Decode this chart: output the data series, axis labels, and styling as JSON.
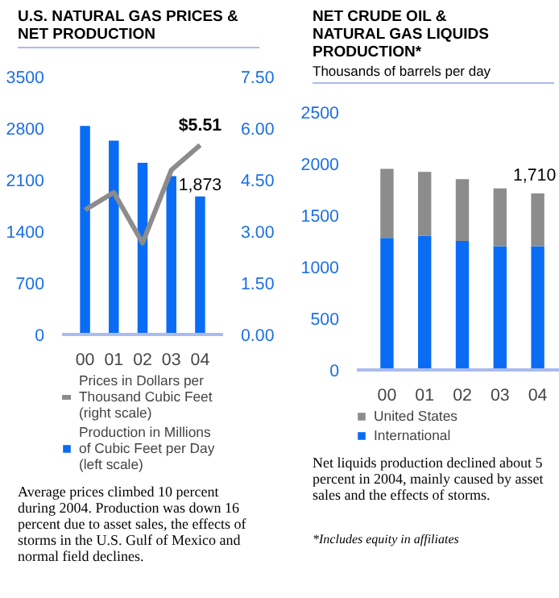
{
  "chart_data": [
    {
      "type": "bar",
      "title": "U.S. NATURAL GAS PRICES & NET PRODUCTION",
      "categories": [
        "00",
        "01",
        "02",
        "03",
        "04"
      ],
      "ylim": [
        0,
        3500
      ],
      "yticks": [
        0,
        700,
        1400,
        2100,
        2800,
        3500
      ],
      "y2lim": [
        0,
        7.5
      ],
      "y2ticks": [
        {
          "value": 0,
          "label": "0.00"
        },
        {
          "value": 1.5,
          "label": "1.50"
        },
        {
          "value": 3,
          "label": "3.00"
        },
        {
          "value": 4.5,
          "label": "4.50"
        },
        {
          "value": 6,
          "label": "6.00"
        },
        {
          "value": 7.5,
          "label": "7.50"
        }
      ],
      "legend": "bottom",
      "grid": false,
      "series": [
        {
          "name": "Prices in Dollars per Thousand Cubic Feet (right scale)",
          "type": "line",
          "axis": "y2",
          "color": "#8c8c8c",
          "values": [
            3.62,
            4.13,
            2.66,
            4.78,
            5.51
          ],
          "value_labels": [
            null,
            null,
            null,
            null,
            "$5.51"
          ]
        },
        {
          "name": "Production in Millions of Cubic Feet per Day (left scale)",
          "type": "bar",
          "color": "#0a6cf5",
          "values": [
            2830,
            2630,
            2330,
            2150,
            1873
          ],
          "value_labels": [
            null,
            null,
            null,
            null,
            "1,873"
          ]
        }
      ],
      "annotations": [
        "Average prices climbed 10 percent during 2004. Production was down 16 percent due to asset sales, the effects of storms in the U.S. Gulf of Mexico and normal field declines."
      ]
    },
    {
      "type": "bar",
      "title": "NET CRUDE OIL & NATURAL GAS LIQUIDS PRODUCTION*",
      "subtitle": "Thousands of barrels per day",
      "categories": [
        "00",
        "01",
        "02",
        "03",
        "04"
      ],
      "ylim": [
        0,
        2500
      ],
      "yticks": [
        0,
        500,
        1000,
        1500,
        2000,
        2500
      ],
      "stacked": true,
      "legend": "bottom",
      "grid": false,
      "totals": [
        null,
        null,
        null,
        null,
        "1,710"
      ],
      "series": [
        {
          "name": "International",
          "color": "#0a6cf5",
          "values": [
            1280,
            1300,
            1250,
            1200,
            1200
          ]
        },
        {
          "name": "United States",
          "color": "#8c8c8c",
          "values": [
            670,
            620,
            600,
            560,
            510
          ]
        }
      ],
      "annotations": [
        "Net liquids production declined about 5 percent in 2004, mainly caused by asset sales and the effects of storms.",
        "*Includes equity in affiliates"
      ]
    }
  ]
}
